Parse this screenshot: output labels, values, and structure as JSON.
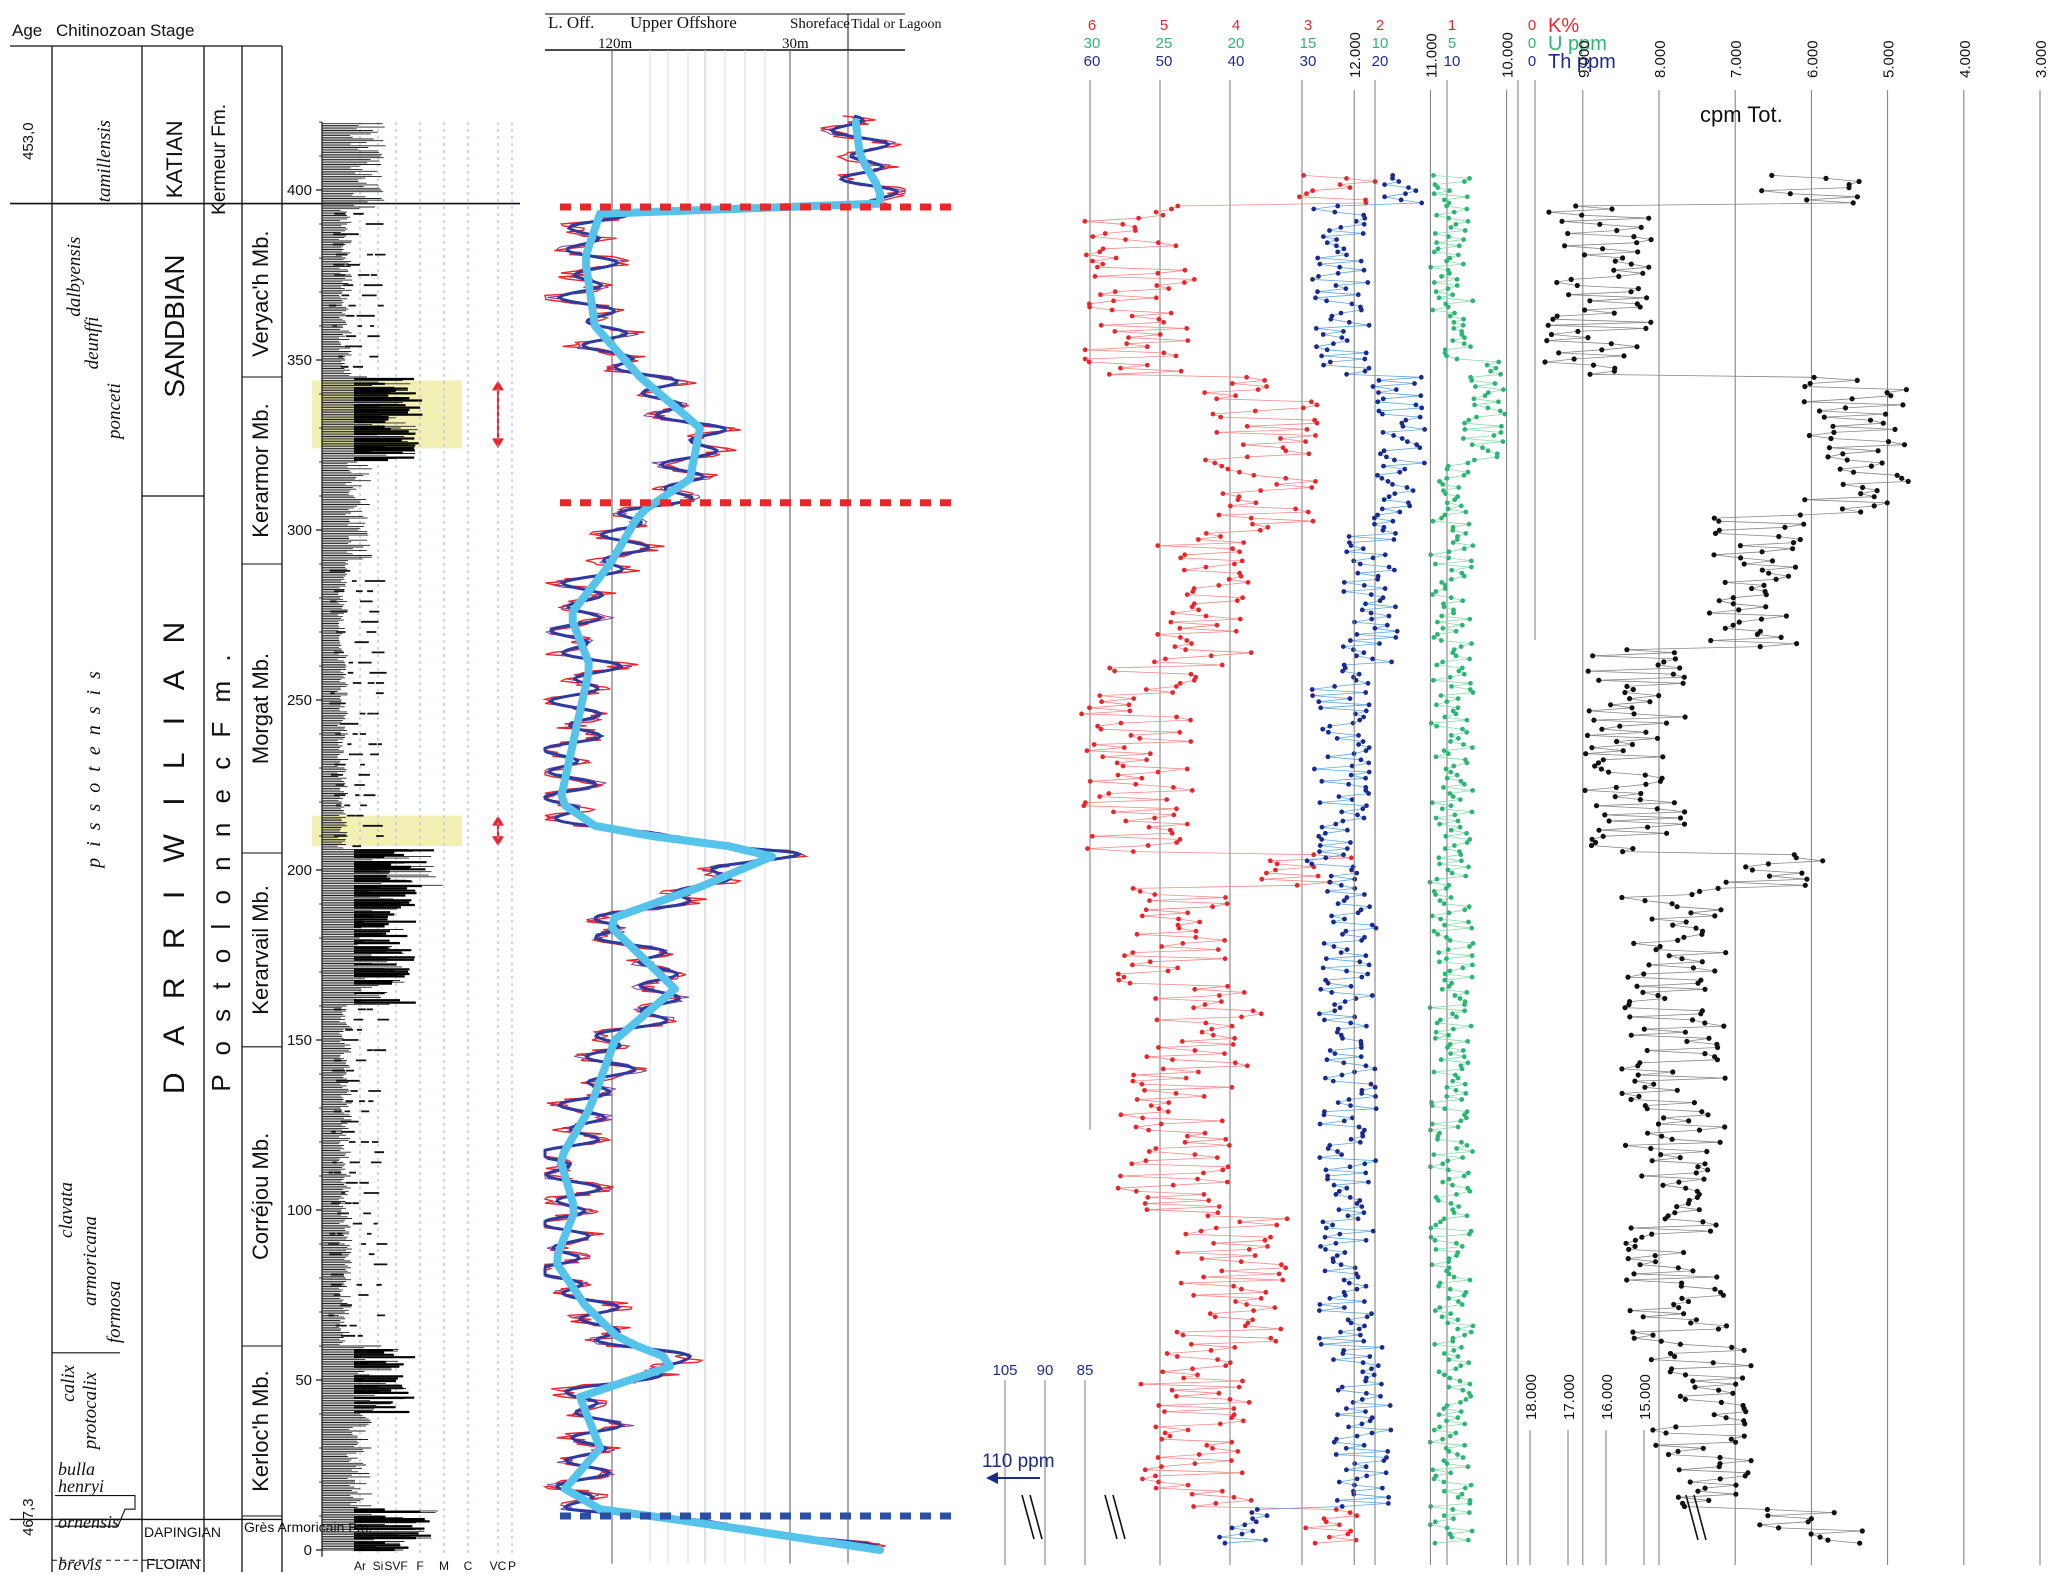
{
  "columns": {
    "age": "Age",
    "chitinozoan": "Chitinozoan",
    "stage": "Stage",
    "age_top": "453,0",
    "age_bottom": "467,3"
  },
  "chitinozoan_zones": [
    {
      "name": "tamillensis",
      "top": 423,
      "bottom": 394
    },
    {
      "name": "dalbyensis",
      "top": 394,
      "bottom": 355
    },
    {
      "name": "deunffi",
      "top": 380,
      "bottom": 330
    },
    {
      "name": "ponceti",
      "top": 360,
      "bottom": 310
    },
    {
      "name": "pissotensis",
      "top": 310,
      "bottom": 185
    },
    {
      "name": "clavata",
      "top": 115,
      "bottom": 85
    },
    {
      "name": "armoricana",
      "top": 100,
      "bottom": 70
    },
    {
      "name": "formosa",
      "top": 85,
      "bottom": 55
    },
    {
      "name": "calix",
      "top": 58,
      "bottom": 40
    },
    {
      "name": "protocalix",
      "top": 52,
      "bottom": 30
    },
    {
      "name": "bulla",
      "top": 13,
      "bottom": 12
    },
    {
      "name": "henryi",
      "top": 11,
      "bottom": 10
    },
    {
      "name": "ornensis",
      "top": 8,
      "bottom": 0
    },
    {
      "name": "brevis",
      "top": -2,
      "bottom": -6
    }
  ],
  "stages": [
    {
      "name": "KATIAN",
      "mid": 409
    },
    {
      "name": "SANDBIAN",
      "mid": 360
    },
    {
      "name": "D A R R I W I L I A N",
      "mid": 205
    },
    {
      "name": "DAPINGIAN",
      "mid": 6
    },
    {
      "name": "FLOIAN",
      "mid": -2
    }
  ],
  "formations": [
    {
      "name": "Kermeur Fm.",
      "mid": 409
    },
    {
      "name": "P o s t o l o n n e c   F m .",
      "mid": 200
    },
    {
      "name": "Grès Armoricain Fm.",
      "mid": 2
    }
  ],
  "members": [
    {
      "name": "Veryac'h Mb.",
      "top": 394,
      "bottom": 345
    },
    {
      "name": "Kerarmor Mb.",
      "top": 345,
      "bottom": 290
    },
    {
      "name": "Morgat Mb.",
      "top": 290,
      "bottom": 205
    },
    {
      "name": "Kerarvail Mb.",
      "top": 205,
      "bottom": 148
    },
    {
      "name": "Corréjou Mb.",
      "top": 148,
      "bottom": 60
    },
    {
      "name": "Kerloc'h Mb.",
      "top": 60,
      "bottom": 10
    }
  ],
  "depth_axis": {
    "ticks": [
      "0",
      "50",
      "100",
      "150",
      "200",
      "250",
      "300",
      "350",
      "400"
    ]
  },
  "grain_size_labels": [
    "Ar",
    "Si",
    "SVF",
    "F",
    "M",
    "C",
    "VC",
    "P"
  ],
  "environment": {
    "zones": [
      "L. Off.",
      "Upper Offshore",
      "Shoreface",
      "Tidal or Lagoon"
    ],
    "depth_labels": [
      "120m",
      "30m"
    ]
  },
  "gamma": {
    "k_label": "K%",
    "u_label": "U ppm",
    "th_label": "Th ppm",
    "k_ticks": [
      "6",
      "5",
      "4",
      "3",
      "2",
      "1",
      "0"
    ],
    "u_ticks": [
      "30",
      "25",
      "20",
      "15",
      "10",
      "5",
      "0"
    ],
    "th_ticks": [
      "60",
      "50",
      "40",
      "30",
      "20",
      "10",
      "0"
    ],
    "th_extra_ticks": [
      "105",
      "90",
      "85"
    ],
    "th_arrow_label": "110 ppm",
    "cpm_label": "cpm Tot.",
    "cpm_ticks": [
      "12.000",
      "11.000",
      "10.000",
      "9.000",
      "8.000",
      "7.000",
      "6.000",
      "5.000",
      "4.000",
      "3.000"
    ],
    "cpm_extra_ticks": [
      "18.000",
      "17.000",
      "16.000",
      "15.000"
    ]
  },
  "colors": {
    "k": "#e8262b",
    "u": "#2bb673",
    "th": "#1b2a8f",
    "sea_level": "#55c3ea",
    "sea_curve": "#2d3a9e",
    "highlight": "#f3f0b5"
  }
}
